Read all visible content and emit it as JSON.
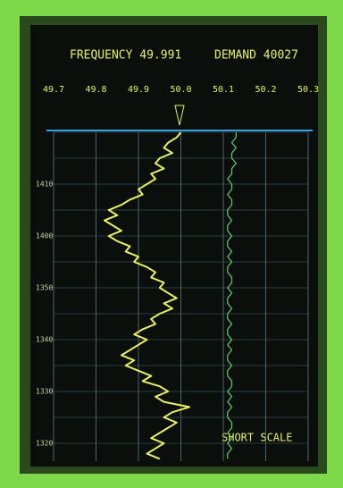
{
  "chart_data": {
    "type": "line",
    "orientation": "vertical",
    "annotations": [
      "FREQUENCY 49.991",
      "DEMAND 40027",
      "SHORT SCALE"
    ],
    "categories": [
      null,
      null,
      null,
      null,
      null,
      null,
      null,
      null,
      null,
      null,
      "1410",
      null,
      null,
      null,
      null,
      null,
      null,
      null,
      null,
      null,
      "1400",
      null,
      null,
      null,
      null,
      null,
      null,
      null,
      null,
      null,
      "1350",
      null,
      null,
      null,
      null,
      null,
      null,
      null,
      null,
      null,
      "1340",
      null,
      null,
      null,
      null,
      null,
      null,
      null,
      null,
      null,
      "1330",
      null,
      null,
      null,
      null,
      null,
      null,
      null,
      null,
      null,
      "1320",
      null,
      null,
      null
    ],
    "series": [
      {
        "color": "#e8f060",
        "values": [
          50.0,
          49.99,
          49.97,
          49.96,
          49.98,
          49.95,
          49.94,
          49.96,
          49.93,
          49.94,
          49.92,
          49.9,
          49.91,
          49.88,
          49.86,
          49.83,
          49.85,
          49.82,
          49.84,
          49.86,
          49.83,
          49.85,
          49.88,
          49.87,
          49.9,
          49.89,
          49.92,
          49.94,
          49.93,
          49.96,
          49.95,
          49.97,
          49.99,
          49.96,
          49.98,
          49.95,
          49.93,
          49.94,
          49.91,
          49.89,
          49.92,
          49.9,
          49.88,
          49.86,
          49.89,
          49.87,
          49.9,
          49.93,
          49.91,
          49.95,
          49.97,
          49.94,
          49.96,
          50.02,
          49.98,
          49.96,
          49.99,
          49.97,
          49.95,
          49.93,
          49.96,
          49.94,
          49.92,
          49.95
        ]
      },
      {
        "color": "#5fd06a",
        "values": [
          50.13,
          50.13,
          50.12,
          50.13,
          50.12,
          50.12,
          50.13,
          50.12,
          50.12,
          50.11,
          50.12,
          50.12,
          50.11,
          50.12,
          50.12,
          50.11,
          50.11,
          50.12,
          50.11,
          50.11,
          50.12,
          50.11,
          50.11,
          50.12,
          50.11,
          50.12,
          50.11,
          50.11,
          50.12,
          50.12,
          50.11,
          50.12,
          50.11,
          50.11,
          50.12,
          50.11,
          50.11,
          50.12,
          50.11,
          50.11,
          50.12,
          50.11,
          50.12,
          50.11,
          50.11,
          50.12,
          50.11,
          50.11,
          50.12,
          50.12,
          50.11,
          50.12,
          50.11,
          50.12,
          50.11,
          50.11,
          50.12,
          50.12,
          50.11,
          50.12,
          50.11,
          50.12,
          50.11,
          50.11
        ]
      }
    ],
    "xlim": [
      49.7,
      50.3
    ],
    "xticks": [
      49.7,
      49.8,
      49.9,
      {
        "value": 50,
        "label": "50.0"
      },
      50.1,
      50.2,
      50.3
    ],
    "grid": true
  }
}
